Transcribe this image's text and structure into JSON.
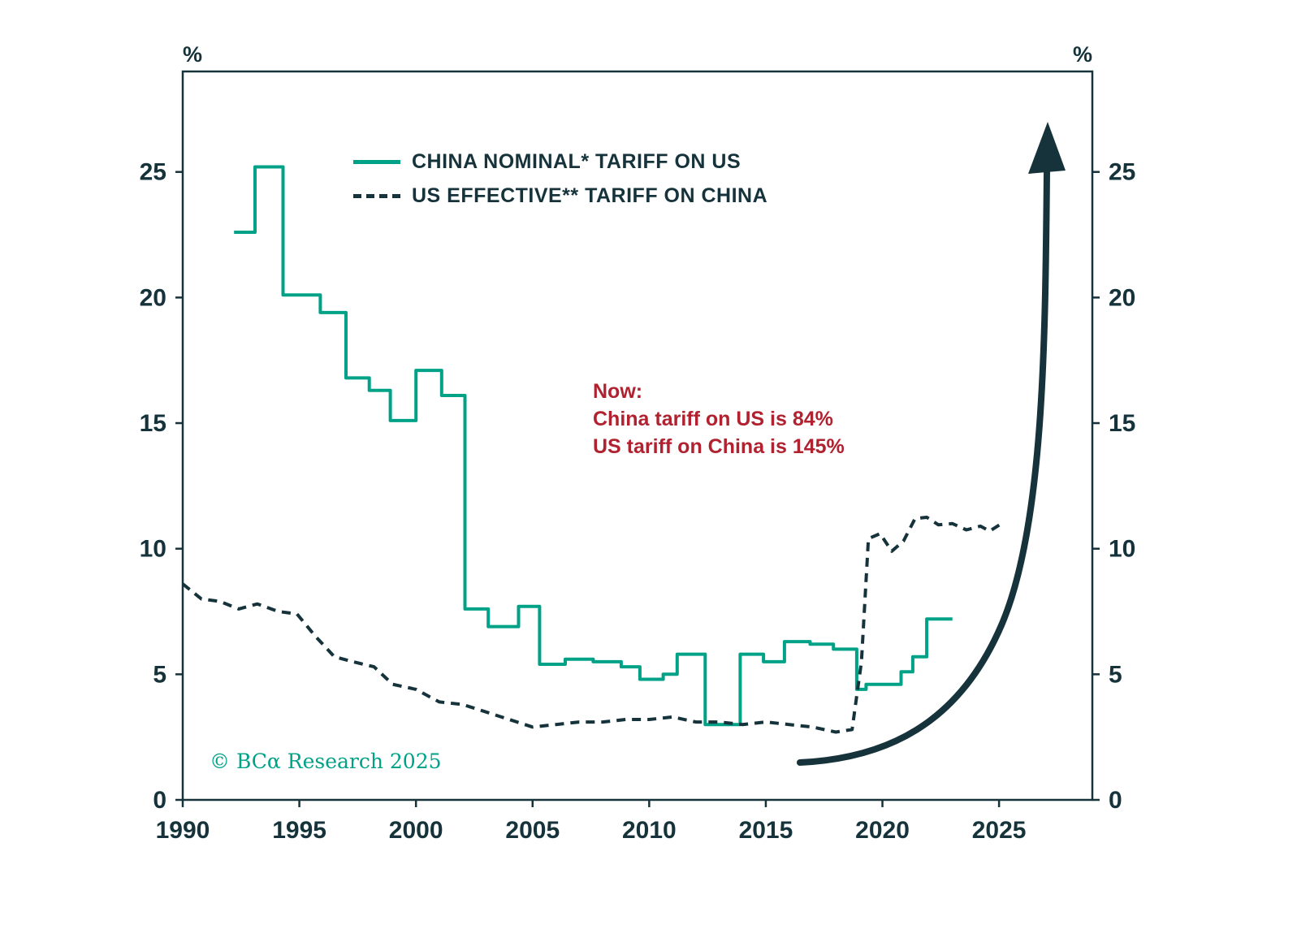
{
  "colors": {
    "text_dark": "#16333c",
    "china_line": "#00a287",
    "us_line": "#16333c",
    "annotation_red": "#b0222f",
    "arrow": "#16333c",
    "background": "#ffffff"
  },
  "legend": {
    "china_label": "CHINA NOMINAL* TARIFF ON US",
    "us_label": "US EFFECTIVE** TARIFF ON CHINA"
  },
  "annotation": {
    "line1": "Now:",
    "line2": "China tariff on US is 84%",
    "line3": "US tariff on China is 145%"
  },
  "copyright": "© BCα Research 2025",
  "axes": {
    "left_unit": "%",
    "right_unit": "%"
  },
  "chart_data": {
    "type": "line",
    "title": "",
    "xlabel": "",
    "ylabel": "%",
    "xlim": [
      1990,
      2029
    ],
    "ylim": [
      0,
      29
    ],
    "xticks": [
      1990,
      1995,
      2000,
      2005,
      2010,
      2015,
      2020,
      2025
    ],
    "yticks": [
      0,
      5,
      10,
      15,
      20,
      25
    ],
    "grid": false,
    "legend_position": "upper-left-inside",
    "series": [
      {
        "id": "china-tariff-line",
        "name": "CHINA NOMINAL* TARIFF ON US",
        "style": "solid-step",
        "color": "#00a287",
        "points": [
          [
            1992.2,
            22.6
          ],
          [
            1993.1,
            25.2
          ],
          [
            1994.3,
            20.1
          ],
          [
            1995.9,
            19.4
          ],
          [
            1997.0,
            16.8
          ],
          [
            1998.0,
            16.3
          ],
          [
            1998.9,
            15.1
          ],
          [
            2000.0,
            17.1
          ],
          [
            2001.1,
            16.1
          ],
          [
            2002.1,
            7.6
          ],
          [
            2003.1,
            6.9
          ],
          [
            2004.4,
            7.7
          ],
          [
            2005.3,
            5.4
          ],
          [
            2006.4,
            5.6
          ],
          [
            2007.6,
            5.5
          ],
          [
            2008.8,
            5.3
          ],
          [
            2009.6,
            4.8
          ],
          [
            2010.6,
            5.0
          ],
          [
            2011.2,
            5.8
          ],
          [
            2012.4,
            3.0
          ],
          [
            2013.9,
            5.8
          ],
          [
            2014.9,
            5.5
          ],
          [
            2015.8,
            6.3
          ],
          [
            2016.9,
            6.2
          ],
          [
            2017.9,
            6.0
          ],
          [
            2018.9,
            4.4
          ],
          [
            2019.3,
            4.6
          ],
          [
            2020.8,
            5.1
          ],
          [
            2021.3,
            5.7
          ],
          [
            2021.9,
            7.2
          ],
          [
            2023.0,
            7.2
          ]
        ]
      },
      {
        "id": "us-tariff-line",
        "name": "US EFFECTIVE** TARIFF ON CHINA",
        "style": "dashed",
        "color": "#16333c",
        "points": [
          [
            1990.0,
            8.6
          ],
          [
            1990.8,
            8.0
          ],
          [
            1991.6,
            7.9
          ],
          [
            1992.4,
            7.6
          ],
          [
            1993.2,
            7.8
          ],
          [
            1994.1,
            7.5
          ],
          [
            1994.9,
            7.4
          ],
          [
            1995.7,
            6.5
          ],
          [
            1996.5,
            5.7
          ],
          [
            1997.3,
            5.5
          ],
          [
            1998.2,
            5.3
          ],
          [
            1999.0,
            4.6
          ],
          [
            2000.0,
            4.4
          ],
          [
            2001.0,
            3.9
          ],
          [
            2002.0,
            3.8
          ],
          [
            2003.0,
            3.5
          ],
          [
            2004.0,
            3.2
          ],
          [
            2005.0,
            2.9
          ],
          [
            2006.0,
            3.0
          ],
          [
            2007.0,
            3.1
          ],
          [
            2008.0,
            3.1
          ],
          [
            2009.0,
            3.2
          ],
          [
            2010.0,
            3.2
          ],
          [
            2011.0,
            3.3
          ],
          [
            2012.0,
            3.1
          ],
          [
            2013.0,
            3.1
          ],
          [
            2014.0,
            3.0
          ],
          [
            2015.0,
            3.1
          ],
          [
            2016.0,
            3.0
          ],
          [
            2017.0,
            2.9
          ],
          [
            2018.0,
            2.7
          ],
          [
            2018.7,
            2.8
          ],
          [
            2019.1,
            5.5
          ],
          [
            2019.4,
            10.4
          ],
          [
            2019.9,
            10.6
          ],
          [
            2020.4,
            9.9
          ],
          [
            2020.9,
            10.3
          ],
          [
            2021.4,
            11.2
          ],
          [
            2021.9,
            11.25
          ],
          [
            2022.4,
            10.95
          ],
          [
            2023.0,
            11.0
          ],
          [
            2023.6,
            10.75
          ],
          [
            2024.2,
            10.9
          ],
          [
            2024.6,
            10.7
          ],
          [
            2025.1,
            11.0
          ]
        ]
      }
    ]
  }
}
